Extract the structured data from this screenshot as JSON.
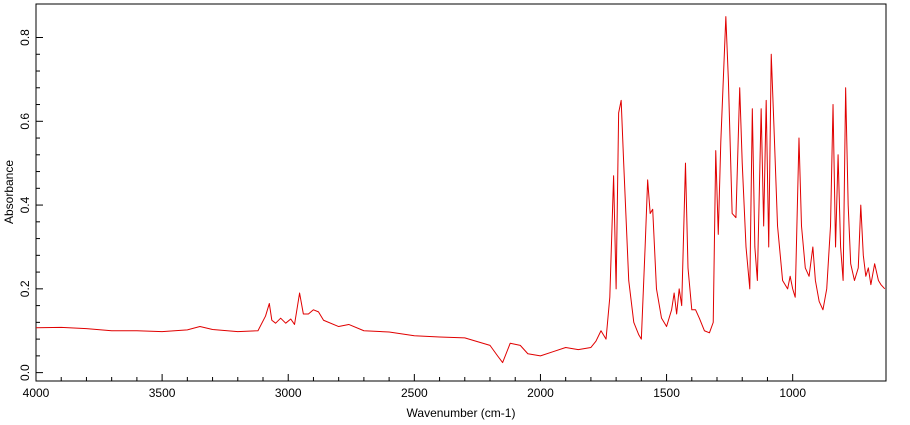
{
  "chart_data": {
    "type": "line",
    "xlabel": "Wavenumber (cm-1)",
    "ylabel": "Absorbance",
    "color": "#e00000",
    "xlim": [
      4000,
      630
    ],
    "ylim": [
      -0.02,
      0.88
    ],
    "xticks": [
      4000,
      3500,
      3000,
      2500,
      2000,
      1500,
      1000
    ],
    "yticks": [
      {
        "value": 0,
        "label": "0.0"
      },
      0.2,
      0.4,
      0.6,
      0.8
    ],
    "x": [
      4000,
      3900,
      3800,
      3700,
      3600,
      3500,
      3400,
      3350,
      3300,
      3200,
      3120,
      3090,
      3075,
      3065,
      3050,
      3030,
      3010,
      2990,
      2975,
      2955,
      2940,
      2920,
      2900,
      2880,
      2860,
      2800,
      2760,
      2700,
      2600,
      2500,
      2400,
      2300,
      2200,
      2170,
      2150,
      2120,
      2080,
      2050,
      2000,
      1950,
      1900,
      1850,
      1800,
      1780,
      1760,
      1740,
      1725,
      1710,
      1700,
      1690,
      1680,
      1670,
      1650,
      1630,
      1610,
      1600,
      1585,
      1575,
      1565,
      1555,
      1540,
      1520,
      1500,
      1480,
      1470,
      1460,
      1450,
      1440,
      1425,
      1415,
      1400,
      1385,
      1370,
      1350,
      1330,
      1315,
      1305,
      1295,
      1285,
      1265,
      1255,
      1240,
      1225,
      1210,
      1200,
      1185,
      1170,
      1160,
      1150,
      1140,
      1125,
      1115,
      1105,
      1095,
      1085,
      1075,
      1060,
      1040,
      1020,
      1010,
      1000,
      990,
      975,
      965,
      950,
      935,
      920,
      910,
      895,
      880,
      865,
      850,
      840,
      830,
      820,
      810,
      800,
      790,
      780,
      770,
      755,
      740,
      730,
      720,
      710,
      700,
      690,
      675,
      660,
      650,
      635
    ],
    "values": [
      0.107,
      0.108,
      0.105,
      0.1,
      0.1,
      0.098,
      0.102,
      0.11,
      0.103,
      0.098,
      0.1,
      0.135,
      0.165,
      0.125,
      0.118,
      0.13,
      0.118,
      0.128,
      0.115,
      0.19,
      0.14,
      0.14,
      0.15,
      0.145,
      0.125,
      0.11,
      0.115,
      0.1,
      0.097,
      0.088,
      0.085,
      0.083,
      0.065,
      0.04,
      0.024,
      0.07,
      0.065,
      0.045,
      0.04,
      0.05,
      0.06,
      0.055,
      0.06,
      0.075,
      0.1,
      0.08,
      0.18,
      0.47,
      0.2,
      0.62,
      0.65,
      0.5,
      0.22,
      0.12,
      0.09,
      0.08,
      0.3,
      0.46,
      0.38,
      0.39,
      0.2,
      0.13,
      0.11,
      0.15,
      0.19,
      0.14,
      0.2,
      0.16,
      0.5,
      0.25,
      0.15,
      0.15,
      0.13,
      0.1,
      0.095,
      0.12,
      0.53,
      0.33,
      0.55,
      0.85,
      0.7,
      0.38,
      0.37,
      0.68,
      0.5,
      0.3,
      0.2,
      0.63,
      0.3,
      0.22,
      0.63,
      0.35,
      0.65,
      0.3,
      0.76,
      0.6,
      0.35,
      0.22,
      0.2,
      0.23,
      0.2,
      0.18,
      0.56,
      0.35,
      0.25,
      0.23,
      0.3,
      0.22,
      0.17,
      0.15,
      0.2,
      0.35,
      0.64,
      0.3,
      0.52,
      0.3,
      0.22,
      0.68,
      0.4,
      0.26,
      0.22,
      0.25,
      0.4,
      0.28,
      0.23,
      0.25,
      0.21,
      0.26,
      0.22,
      0.21,
      0.2
    ]
  }
}
